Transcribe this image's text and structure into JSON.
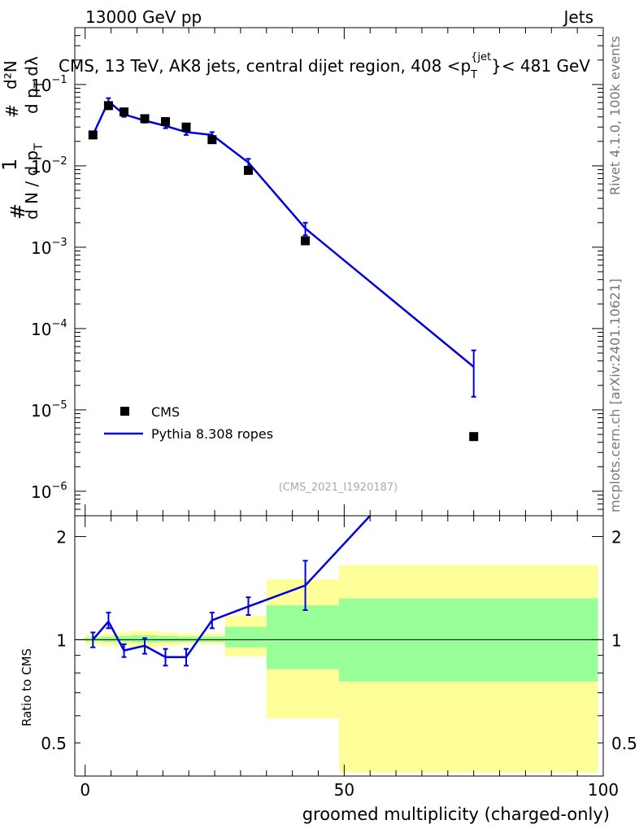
{
  "header": {
    "energy_label": "13000 GeV pp",
    "category_label": "Jets"
  },
  "side_labels": {
    "rivet": "Rivet 4.1.0,  100k events",
    "mcplots": "mcplots.cern.ch [arXiv:2401.10621]"
  },
  "colors": {
    "mc_line": "#0000dd",
    "band_outer": "#ffff99",
    "band_inner": "#99ff99",
    "data_marker": "#000000"
  },
  "chart_data": [
    {
      "type": "scatter",
      "title": "CMS, 13 TeV, AK8 jets, central dijet region, 408 <p_T^{jet}< 481 GeV",
      "title_parts": {
        "prefix": "CMS, 13 TeV, AK8 jets, central dijet region, 408 <p",
        "sub": "T",
        "sup": "{jet",
        "suffix": "}< 481 GeV"
      },
      "ylabel_parts": {
        "hash": "#",
        "one": "1",
        "sigma_den": "d N / d p",
        "sigma_sub": "T",
        "deriv_num": "d²N",
        "deriv_den": "d p",
        "deriv_sub": "T",
        "deriv_tail": "dλ"
      },
      "yscale": "log",
      "ylim": [
        5e-07,
        0.5
      ],
      "xlim": [
        -2,
        100
      ],
      "ytick_labels": [
        {
          "exp": -6,
          "base": "10",
          "power": "−6"
        },
        {
          "exp": -5,
          "base": "10",
          "power": "−5"
        },
        {
          "exp": -4,
          "base": "10",
          "power": "−4"
        },
        {
          "exp": -3,
          "base": "10",
          "power": "−3"
        },
        {
          "exp": -2,
          "base": "10",
          "power": "−2"
        },
        {
          "exp": -1,
          "base": "10",
          "power": "−1"
        }
      ],
      "series": [
        {
          "name": "CMS",
          "kind": "data",
          "x": [
            1.5,
            4.5,
            7.5,
            11.5,
            15.5,
            19.5,
            24.5,
            31.5,
            42.5,
            75
          ],
          "y": [
            0.024,
            0.055,
            0.046,
            0.038,
            0.035,
            0.03,
            0.021,
            0.0088,
            0.0012,
            4.7e-06
          ]
        },
        {
          "name": "Pythia 8.308 ropes",
          "kind": "mc",
          "x": [
            1.5,
            4.5,
            7.5,
            11.5,
            15.5,
            19.5,
            24.5,
            31.5,
            42.5,
            75
          ],
          "y": [
            0.024,
            0.062,
            0.043,
            0.036,
            0.031,
            0.026,
            0.024,
            0.011,
            0.0017,
            3.38e-05
          ],
          "y_err_low": [
            0.0235,
            0.057,
            0.04,
            0.034,
            0.029,
            0.024,
            0.022,
            0.0098,
            0.0014,
            1.45e-05
          ],
          "y_err_high": [
            0.0245,
            0.068,
            0.046,
            0.038,
            0.033,
            0.028,
            0.026,
            0.0122,
            0.002,
            5.4e-05
          ]
        }
      ],
      "legend": {
        "placement": "bottom-left",
        "entries": [
          "CMS",
          "Pythia 8.308 ropes"
        ]
      },
      "watermark": "(CMS_2021_I1920187)"
    },
    {
      "type": "line",
      "ylabel": "Ratio to CMS",
      "xlabel": "groomed multiplicity (charged-only)",
      "yscale": "log",
      "ylim": [
        0.4,
        2.3
      ],
      "xlim": [
        -2,
        100
      ],
      "ytick_labels": [
        {
          "value": 0.5,
          "label": "0.5"
        },
        {
          "value": 1,
          "label": "1"
        },
        {
          "value": 2,
          "label": "2"
        }
      ],
      "xtick_labels": [
        {
          "value": 0,
          "label": "0"
        },
        {
          "value": 50,
          "label": "50"
        },
        {
          "value": 100,
          "label": "100"
        }
      ],
      "reference_line": 1,
      "bands": [
        {
          "x0": 0,
          "x1": 3,
          "inner": [
            0.99,
            1.015
          ],
          "outer": [
            0.97,
            1.03
          ]
        },
        {
          "x0": 3,
          "x1": 6,
          "inner": [
            0.985,
            1.02
          ],
          "outer": [
            0.96,
            1.04
          ]
        },
        {
          "x0": 6,
          "x1": 9,
          "inner": [
            0.985,
            1.025
          ],
          "outer": [
            0.96,
            1.05
          ]
        },
        {
          "x0": 9,
          "x1": 14,
          "inner": [
            0.98,
            1.03
          ],
          "outer": [
            0.95,
            1.06
          ]
        },
        {
          "x0": 14,
          "x1": 18,
          "inner": [
            0.985,
            1.025
          ],
          "outer": [
            0.96,
            1.05
          ]
        },
        {
          "x0": 18,
          "x1": 22,
          "inner": [
            0.985,
            1.02
          ],
          "outer": [
            0.97,
            1.04
          ]
        },
        {
          "x0": 22,
          "x1": 27,
          "inner": [
            0.985,
            1.02
          ],
          "outer": [
            0.97,
            1.04
          ]
        },
        {
          "x0": 27,
          "x1": 35,
          "inner": [
            0.95,
            1.09
          ],
          "outer": [
            0.895,
            1.175
          ]
        },
        {
          "x0": 35,
          "x1": 49,
          "inner": [
            0.82,
            1.26
          ],
          "outer": [
            0.59,
            1.5
          ]
        },
        {
          "x0": 49,
          "x1": 99,
          "inner": [
            0.755,
            1.32
          ],
          "outer": [
            0.41,
            1.65
          ]
        }
      ],
      "series": [
        {
          "name": "Pythia 8.308 ropes / CMS",
          "x": [
            1.5,
            4.5,
            7.5,
            11.5,
            15.5,
            19.5,
            24.5,
            31.5,
            42.5,
            55
          ],
          "y": [
            1.0,
            1.13,
            0.93,
            0.96,
            0.89,
            0.89,
            1.14,
            1.25,
            1.44,
            2.3
          ],
          "y_err_low": [
            0.95,
            1.08,
            0.89,
            0.91,
            0.84,
            0.84,
            1.08,
            1.18,
            1.22,
            2.3
          ],
          "y_err_high": [
            1.05,
            1.2,
            0.97,
            1.01,
            0.94,
            0.94,
            1.2,
            1.33,
            1.7,
            2.3
          ]
        }
      ]
    }
  ]
}
